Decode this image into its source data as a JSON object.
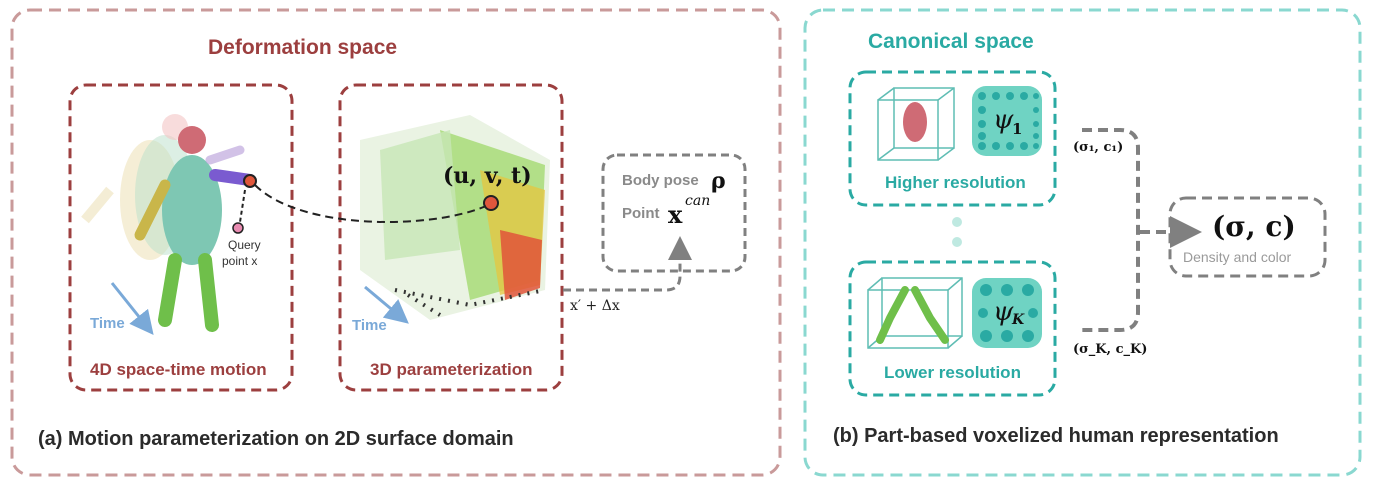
{
  "left_panel": {
    "title": "Deformation space",
    "caption": "(a) Motion parameterization on 2D surface domain",
    "motion_box_label": "4D space-time motion",
    "param_box_label": "3D parameterization",
    "time_label_1": "Time",
    "time_label_2": "Time",
    "query_line1": "Query",
    "query_line2": "point x",
    "uvt_label": "(u, v, t)",
    "offset_label": "x′ + Δx",
    "pose_box": {
      "line1": "Body pose",
      "line1_sym": "ρ",
      "line2": "Point",
      "line2_sym": "x",
      "line2_sup": "can"
    }
  },
  "right_panel": {
    "title": "Canonical space",
    "caption": "(b) Part-based voxelized human representation",
    "top_box_label": "Higher resolution",
    "bottom_box_label": "Lower resolution",
    "psi_top": "ψ",
    "psi_top_sub": "1",
    "psi_bottom": "ψ",
    "psi_bottom_sub": "K",
    "out_top": "(σ₁, c₁)",
    "out_bottom": "(σ_K, c_K)",
    "result_sym": "(σ, c)",
    "result_label": "Density and color"
  },
  "colors": {
    "left_border": "#c99a9a",
    "left_inner": "#9c3f3f",
    "teal": "#2aaaa3",
    "teal_fill": "#6fd3c3",
    "gray_dash": "#808080"
  }
}
